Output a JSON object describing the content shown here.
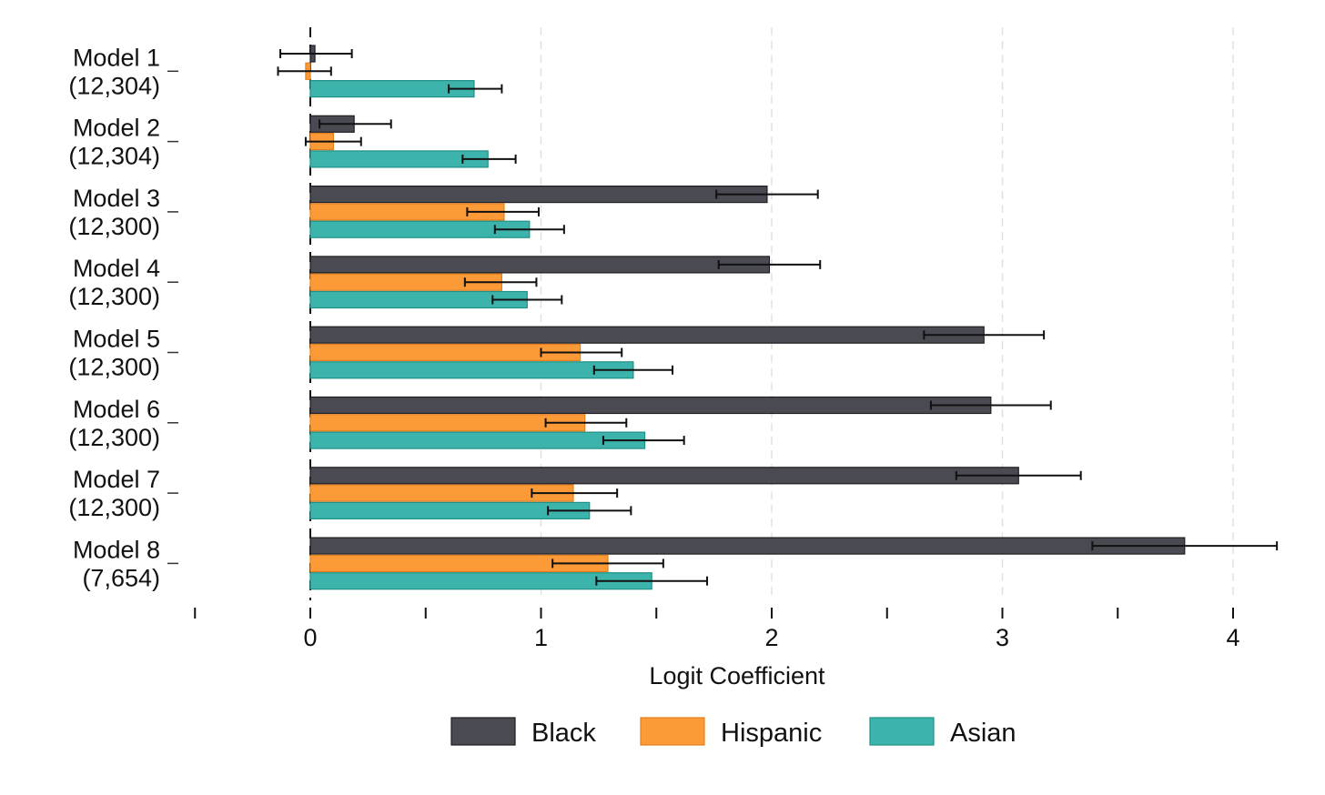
{
  "chart_data": {
    "type": "bar",
    "orientation": "horizontal",
    "title": "",
    "xlabel": "Logit Coefficient",
    "ylabel": "",
    "xlim": [
      -0.5,
      4.25
    ],
    "x_ticks": [
      0,
      1,
      2,
      3,
      4
    ],
    "x_minor_ticks": [
      -0.5,
      0.5,
      1.5,
      2.5,
      3.5
    ],
    "grid": "vertical dashed at major ticks",
    "zero_line": "dashed",
    "legend_position": "bottom",
    "error_bars": true,
    "categories": [
      {
        "label": "Model 1",
        "n": "(12,304)"
      },
      {
        "label": "Model 2",
        "n": "(12,304)"
      },
      {
        "label": "Model 3",
        "n": "(12,300)"
      },
      {
        "label": "Model 4",
        "n": "(12,300)"
      },
      {
        "label": "Model 5",
        "n": "(12,300)"
      },
      {
        "label": "Model 6",
        "n": "(12,300)"
      },
      {
        "label": "Model 7",
        "n": "(12,300)"
      },
      {
        "label": "Model 8",
        "n": "(7,654)"
      }
    ],
    "series": [
      {
        "name": "Black",
        "color": "#4a4a52",
        "values": [
          0.02,
          0.19,
          1.98,
          1.99,
          2.92,
          2.95,
          3.07,
          3.79
        ],
        "ci_low": [
          -0.13,
          0.04,
          1.76,
          1.77,
          2.66,
          2.69,
          2.8,
          3.39
        ],
        "ci_high": [
          0.18,
          0.35,
          2.2,
          2.21,
          3.18,
          3.21,
          3.34,
          4.19
        ]
      },
      {
        "name": "Hispanic",
        "color": "#fd9a38",
        "values": [
          -0.02,
          0.1,
          0.84,
          0.83,
          1.17,
          1.19,
          1.14,
          1.29
        ],
        "ci_low": [
          -0.14,
          -0.02,
          0.68,
          0.67,
          1.0,
          1.02,
          0.96,
          1.05
        ],
        "ci_high": [
          0.09,
          0.22,
          0.99,
          0.98,
          1.35,
          1.37,
          1.33,
          1.53
        ]
      },
      {
        "name": "Asian",
        "color": "#3cb4ac",
        "values": [
          0.71,
          0.77,
          0.95,
          0.94,
          1.4,
          1.45,
          1.21,
          1.48
        ],
        "ci_low": [
          0.6,
          0.66,
          0.8,
          0.79,
          1.23,
          1.27,
          1.03,
          1.24
        ],
        "ci_high": [
          0.83,
          0.89,
          1.1,
          1.09,
          1.57,
          1.62,
          1.39,
          1.72
        ]
      }
    ]
  }
}
